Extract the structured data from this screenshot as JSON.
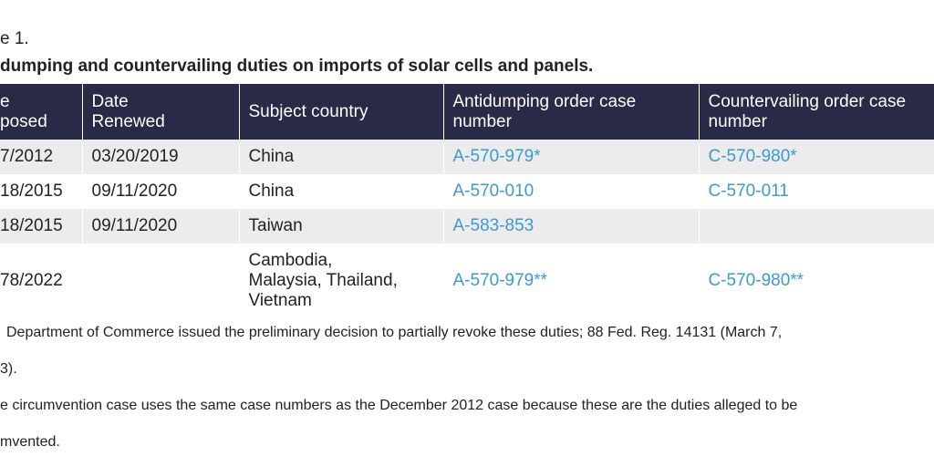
{
  "caption": "e 1.",
  "title": "dumping and countervailing duties on imports of solar cells and panels.",
  "table": {
    "header": [
      "e\nposed",
      "Date\nRenewed",
      "Subject country",
      "Antidumping order case\nnumber",
      "Countervailing order case\nnumber"
    ],
    "rows": [
      [
        "7/2012",
        "03/20/2019",
        "China",
        "A-570-979*",
        "C-570-980*"
      ],
      [
        "18/2015",
        "09/11/2020",
        "China",
        "A-570-010",
        "C-570-011"
      ],
      [
        "18/2015",
        "09/11/2020",
        "Taiwan",
        "A-583-853",
        null
      ],
      [
        "78/2022",
        null,
        "Cambodia,\nMalaysia, Thailand,\nVietnam",
        "A-570-979**",
        "C-570-980**"
      ]
    ]
  },
  "footnotes": [
    [
      "Department of Commerce issued the preliminary decision to partially revoke these duties; 88 Fed. Reg. 14131 (March 7,",
      "3)."
    ],
    [
      "e circumvention case uses the same case numbers as the December 2012 case because these are the duties alleged to be",
      "mvented."
    ]
  ]
}
